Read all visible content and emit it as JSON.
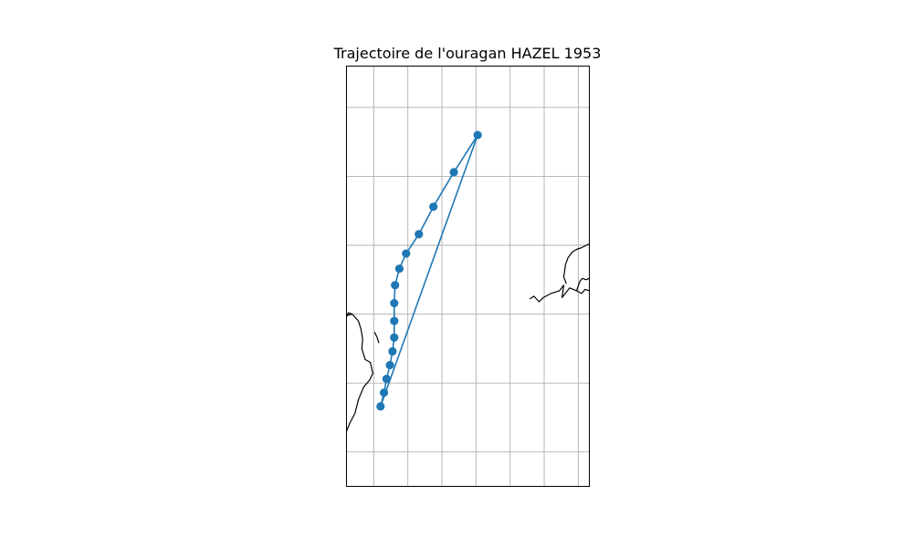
{
  "chart_data": {
    "type": "line",
    "title": "Trajectoire de l'ouragan HAZEL 1953",
    "xlabel": "",
    "ylabel": "",
    "grid": true,
    "marker": "circle",
    "series": [
      {
        "color": "#1f77b4",
        "x": [
          -83.0,
          -82.6,
          -82.3,
          -81.9,
          -81.6,
          -81.4,
          -81.4,
          -81.4,
          -81.3,
          -80.8,
          -80.0,
          -78.5,
          -76.8,
          -74.4,
          -71.6,
          -83.0,
          -82.6,
          -82.3,
          -81.9,
          -81.6,
          -81.4,
          -81.4,
          -81.4,
          -81.3,
          -80.8,
          -80.0,
          -78.5,
          -76.8,
          -74.4,
          -71.6
        ],
        "y": [
          11.8,
          12.8,
          13.8,
          14.8,
          15.8,
          16.8,
          18.0,
          19.3,
          20.6,
          21.8,
          22.9,
          24.3,
          26.3,
          28.8,
          31.5,
          11.8,
          12.8,
          13.8,
          14.8,
          15.8,
          16.8,
          18.0,
          19.3,
          20.6,
          21.8,
          22.9,
          24.3,
          26.3,
          28.8,
          31.5
        ]
      }
    ],
    "xlim": [
      -87.0,
      -58.5
    ],
    "ylim": [
      6.0,
      36.5
    ],
    "grid_x": [
      -83.8,
      -79.8,
      -75.8,
      -71.8,
      -67.8,
      -63.8,
      -59.8
    ],
    "grid_y": [
      8.5,
      13.5,
      18.5,
      23.5,
      28.5,
      33.5
    ]
  },
  "map": {
    "coastlines": [
      {
        "name": "central-america-coast",
        "points": [
          [
            -87.0,
            10.0
          ],
          [
            -86.6,
            10.6
          ],
          [
            -86.0,
            11.3
          ],
          [
            -85.6,
            12.3
          ],
          [
            -85.0,
            13.2
          ],
          [
            -84.3,
            13.7
          ],
          [
            -83.9,
            14.2
          ],
          [
            -84.2,
            15.0
          ],
          [
            -84.8,
            15.2
          ],
          [
            -85.2,
            16.0
          ],
          [
            -85.1,
            16.7
          ],
          [
            -85.3,
            17.4
          ],
          [
            -85.6,
            18.0
          ],
          [
            -86.3,
            18.5
          ],
          [
            -87.0,
            18.4
          ]
        ]
      },
      {
        "name": "yucatan-point",
        "points": [
          [
            -86.3,
            18.5
          ],
          [
            -86.8,
            18.6
          ],
          [
            -87.0,
            18.3
          ]
        ]
      },
      {
        "name": "honduras-cape",
        "points": [
          [
            -83.7,
            17.2
          ],
          [
            -83.4,
            16.8
          ],
          [
            -83.2,
            16.4
          ]
        ]
      },
      {
        "name": "cuba-south-coast",
        "points": [
          [
            -65.5,
            19.6
          ],
          [
            -65.0,
            19.8
          ],
          [
            -64.4,
            19.4
          ],
          [
            -63.9,
            19.7
          ],
          [
            -63.0,
            20.0
          ],
          [
            -62.0,
            20.2
          ],
          [
            -61.5,
            20.6
          ],
          [
            -61.7,
            19.7
          ],
          [
            -60.8,
            20.4
          ],
          [
            -60.0,
            20.2
          ],
          [
            -59.4,
            20.0
          ],
          [
            -59.0,
            20.3
          ],
          [
            -58.5,
            20.2
          ]
        ]
      },
      {
        "name": "cuba-east-shore",
        "points": [
          [
            -60.0,
            20.2
          ],
          [
            -59.6,
            20.9
          ],
          [
            -59.3,
            21.1
          ],
          [
            -58.9,
            21.0
          ],
          [
            -58.5,
            21.1
          ]
        ]
      },
      {
        "name": "hispaniola-west",
        "points": [
          [
            -61.2,
            20.7
          ],
          [
            -61.5,
            21.2
          ],
          [
            -61.3,
            22.1
          ],
          [
            -61.0,
            22.6
          ],
          [
            -60.5,
            23.0
          ],
          [
            -60.0,
            23.2
          ],
          [
            -59.5,
            23.3
          ],
          [
            -58.5,
            23.6
          ]
        ]
      }
    ]
  }
}
